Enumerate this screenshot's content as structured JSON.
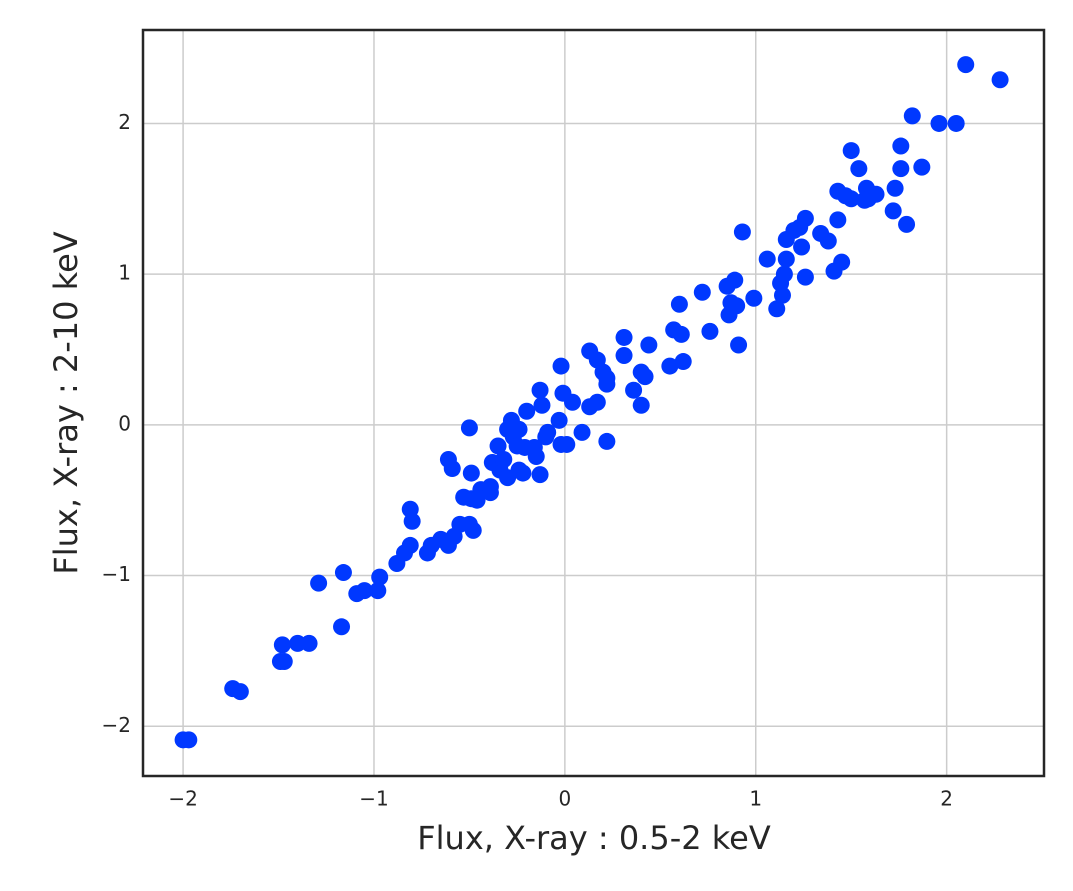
{
  "chart_data": {
    "type": "scatter",
    "x_label": "Flux, X-ray : 0.5-2 keV",
    "y_label": "Flux, X-ray : 2-10 keV",
    "color": "#0038ff",
    "grid": true,
    "xlim": [
      -2.21,
      2.51
    ],
    "ylim": [
      -2.33,
      2.62
    ],
    "xticks": [
      {
        "value": -2,
        "label": "−2"
      },
      {
        "value": -1,
        "label": "−1"
      },
      0,
      1,
      2
    ],
    "yticks": [
      {
        "value": -2,
        "label": "−2"
      },
      {
        "value": -1,
        "label": "−1"
      },
      0,
      1,
      2
    ],
    "x": [
      -2.0,
      -1.97,
      -1.74,
      -1.7,
      -1.48,
      -1.47,
      -1.49,
      -1.4,
      -1.34,
      -1.29,
      -1.17,
      -1.16,
      -1.09,
      -1.05,
      -0.98,
      -0.97,
      -0.88,
      -0.84,
      -0.81,
      -0.81,
      -0.8,
      -0.72,
      -0.7,
      -0.65,
      -0.61,
      -0.61,
      -0.59,
      -0.58,
      -0.55,
      -0.53,
      -0.5,
      -0.49,
      -0.49,
      -0.48,
      -0.5,
      -0.46,
      -0.44,
      -0.39,
      -0.39,
      -0.38,
      -0.35,
      -0.34,
      -0.32,
      -0.3,
      -0.3,
      -0.28,
      -0.27,
      -0.25,
      -0.24,
      -0.24,
      -0.22,
      -0.21,
      -0.2,
      -0.16,
      -0.15,
      -0.13,
      -0.13,
      -0.12,
      -0.1,
      -0.09,
      -0.02,
      -0.03,
      -0.02,
      0.01,
      -0.01,
      0.04,
      0.09,
      0.13,
      0.13,
      0.17,
      0.17,
      0.2,
      0.22,
      0.22,
      0.22,
      0.31,
      0.31,
      0.36,
      0.4,
      0.42,
      0.4,
      0.44,
      0.55,
      0.57,
      0.6,
      0.62,
      0.61,
      0.72,
      0.76,
      0.85,
      0.86,
      0.87,
      0.89,
      0.9,
      0.91,
      0.93,
      0.99,
      1.06,
      1.11,
      1.13,
      1.14,
      1.15,
      1.16,
      1.16,
      1.2,
      1.23,
      1.24,
      1.26,
      1.26,
      1.34,
      1.38,
      1.41,
      1.43,
      1.43,
      1.45,
      1.47,
      1.5,
      1.5,
      1.54,
      1.57,
      1.58,
      1.59,
      1.63,
      1.72,
      1.73,
      1.76,
      1.76,
      1.79,
      1.82,
      1.87,
      1.96,
      2.05,
      2.1,
      2.28
    ],
    "y": [
      -2.09,
      -2.09,
      -1.75,
      -1.77,
      -1.46,
      -1.57,
      -1.57,
      -1.45,
      -1.45,
      -1.05,
      -1.34,
      -0.98,
      -1.12,
      -1.1,
      -1.1,
      -1.01,
      -0.92,
      -0.85,
      -0.8,
      -0.56,
      -0.64,
      -0.85,
      -0.8,
      -0.76,
      -0.8,
      -0.23,
      -0.29,
      -0.74,
      -0.66,
      -0.48,
      -0.02,
      -0.49,
      -0.32,
      -0.7,
      -0.66,
      -0.5,
      -0.43,
      -0.45,
      -0.41,
      -0.25,
      -0.14,
      -0.3,
      -0.23,
      -0.35,
      -0.03,
      0.03,
      -0.08,
      -0.14,
      -0.03,
      -0.3,
      -0.32,
      -0.15,
      0.09,
      -0.15,
      -0.21,
      0.23,
      -0.33,
      0.13,
      -0.08,
      -0.05,
      0.39,
      0.03,
      -0.13,
      -0.13,
      0.21,
      0.15,
      -0.05,
      0.49,
      0.12,
      0.15,
      0.43,
      0.35,
      0.27,
      0.31,
      -0.11,
      0.58,
      0.46,
      0.23,
      0.35,
      0.32,
      0.13,
      0.53,
      0.39,
      0.63,
      0.8,
      0.42,
      0.6,
      0.88,
      0.62,
      0.92,
      0.73,
      0.81,
      0.96,
      0.79,
      0.53,
      1.28,
      0.84,
      1.1,
      0.77,
      0.94,
      0.86,
      1.0,
      1.1,
      1.23,
      1.29,
      1.31,
      1.18,
      1.37,
      0.98,
      1.27,
      1.22,
      1.02,
      1.36,
      1.55,
      1.08,
      1.52,
      1.5,
      1.82,
      1.7,
      1.49,
      1.57,
      1.5,
      1.53,
      1.42,
      1.57,
      1.7,
      1.85,
      1.33,
      2.05,
      1.71,
      2.0,
      2.0,
      2.39,
      2.29
    ]
  }
}
